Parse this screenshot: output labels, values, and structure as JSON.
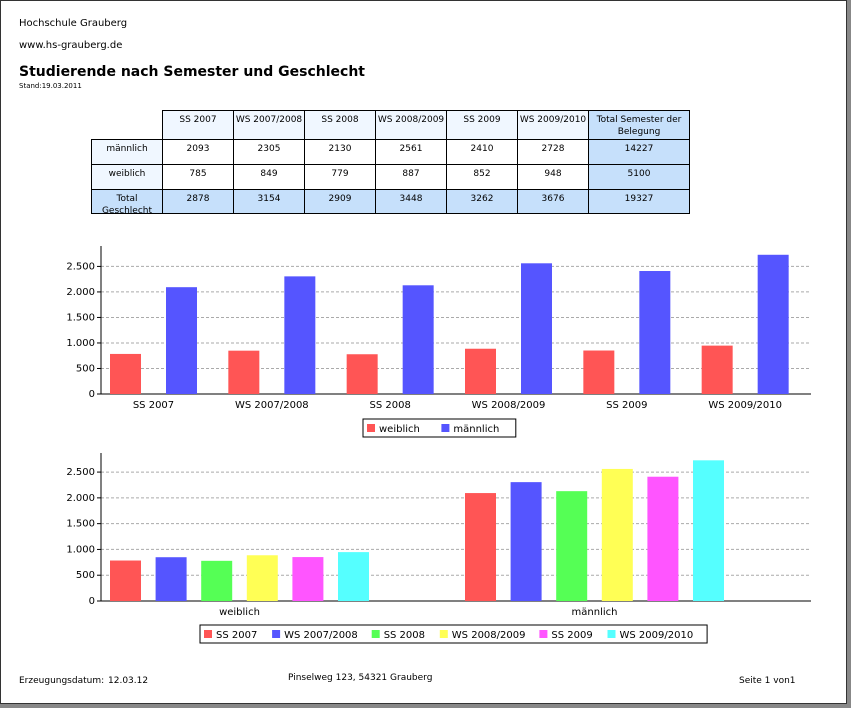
{
  "header": {
    "institution": "Hochschule Grauberg",
    "website": "www.hs-grauberg.de",
    "title": "Studierende nach Semester und Geschlecht",
    "stand": "Stand:19.03.2011"
  },
  "table": {
    "columns": [
      "SS 2007",
      "SS 2008",
      "SS 2009",
      "WS 2007/2008",
      "WS 2008/2009",
      "WS 2009/2010",
      "Total Semester der Belegung"
    ],
    "rows": [
      {
        "label": "männlich",
        "values": [
          2093,
          2130,
          2410,
          2305,
          2561,
          2728,
          14227
        ]
      },
      {
        "label": "weiblich",
        "values": [
          785,
          779,
          852,
          849,
          887,
          948,
          5100
        ]
      },
      {
        "label": "Total Geschlecht",
        "values": [
          2878,
          2909,
          3262,
          3154,
          3448,
          3676,
          19327
        ]
      }
    ]
  },
  "chart_data": [
    {
      "type": "bar",
      "categories": [
        "SS 2007",
        "WS 2007/2008",
        "SS 2008",
        "WS 2008/2009",
        "SS 2009",
        "WS 2009/2010"
      ],
      "series": [
        {
          "name": "weiblich",
          "color": "#ff5555",
          "values": [
            785,
            849,
            779,
            887,
            852,
            948
          ]
        },
        {
          "name": "männlich",
          "color": "#5555ff",
          "values": [
            2093,
            2305,
            2130,
            2561,
            2410,
            2728
          ]
        }
      ],
      "ylim": [
        0,
        2900
      ],
      "yticks": [
        0,
        500,
        {
          "value": 1000,
          "label": "1.000"
        },
        {
          "value": 1500,
          "label": "1.500"
        },
        {
          "value": 2000,
          "label": "2.000"
        },
        {
          "value": 2500,
          "label": "2.500"
        }
      ],
      "grid": true,
      "legend": "bottom"
    },
    {
      "type": "bar",
      "categories": [
        "weiblich",
        "männlich"
      ],
      "series": [
        {
          "name": "SS 2007",
          "color": "#ff5555",
          "values": [
            785,
            2093
          ]
        },
        {
          "name": "WS 2007/2008",
          "color": "#5555ff",
          "values": [
            849,
            2305
          ]
        },
        {
          "name": "SS 2008",
          "color": "#55ff55",
          "values": [
            779,
            2130
          ]
        },
        {
          "name": "WS 2008/2009",
          "color": "#ffff55",
          "values": [
            887,
            2561
          ]
        },
        {
          "name": "SS 2009",
          "color": "#ff55ff",
          "values": [
            852,
            2410
          ]
        },
        {
          "name": "WS 2009/2010",
          "color": "#55ffff",
          "values": [
            948,
            2728
          ]
        }
      ],
      "ylim": [
        0,
        2870
      ],
      "yticks": [
        0,
        500,
        {
          "value": 1000,
          "label": "1.000"
        },
        {
          "value": 1500,
          "label": "1.500"
        },
        {
          "value": 2000,
          "label": "2.000"
        },
        {
          "value": 2500,
          "label": "2.500"
        }
      ],
      "grid": true,
      "legend": "bottom"
    }
  ],
  "footer": {
    "created_label": "Erzeugungsdatum:",
    "created_date": "12.03.12",
    "address": "Pinselweg 123, 54321 Grauberg",
    "page": "Seite 1 von1"
  }
}
